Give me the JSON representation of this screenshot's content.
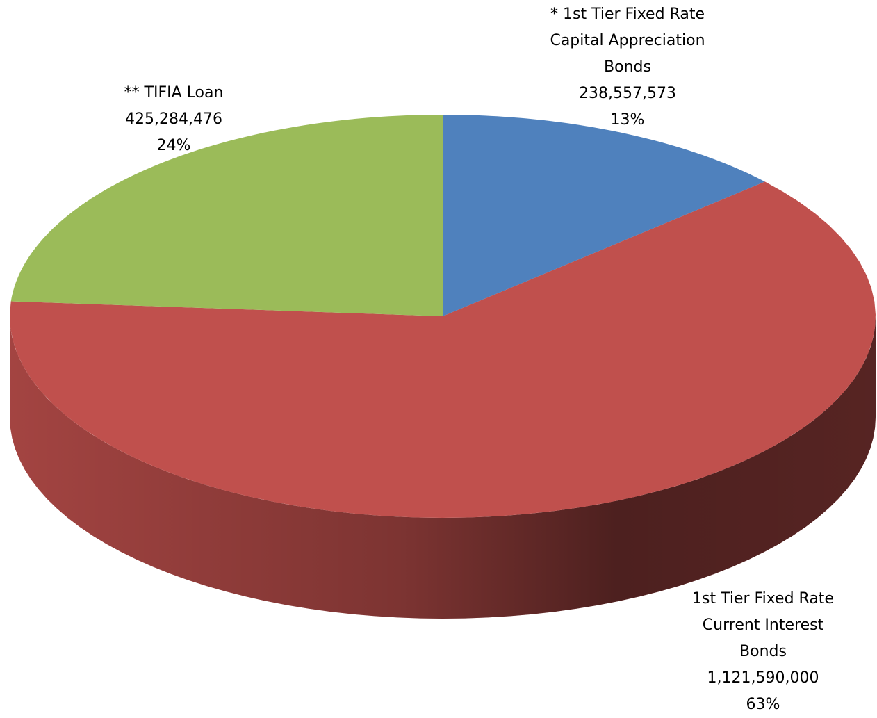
{
  "chart_data": {
    "type": "pie3d",
    "categories": [
      "* 1st Tier Fixed Rate Capital Appreciation Bonds",
      "1st Tier Fixed Rate Current Interest Bonds",
      "** TIFIA Loan"
    ],
    "values": [
      238557573,
      1121590000,
      425284476
    ],
    "value_labels": [
      "238,557,573",
      "1,121,590,000",
      "425,284,476"
    ],
    "percents": [
      13,
      63,
      24
    ],
    "percent_labels": [
      "13%",
      "63%",
      "24%"
    ],
    "colors": [
      "#4f81bd",
      "#c0504d",
      "#9bbb59"
    ]
  }
}
